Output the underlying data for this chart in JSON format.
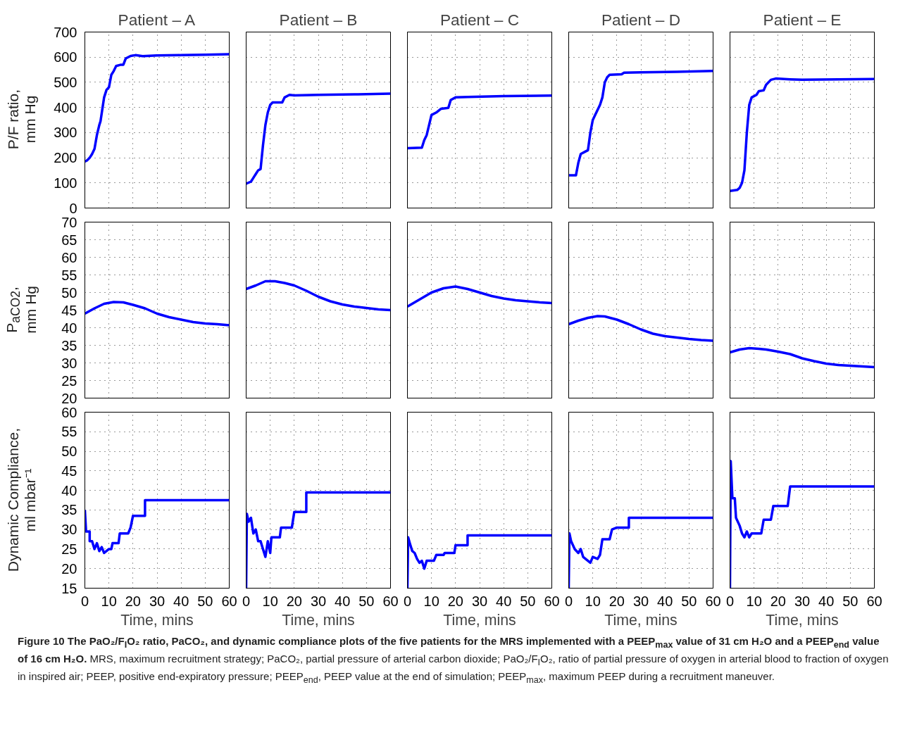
{
  "chart_data": [
    {
      "type": "line",
      "title": "Patient – A",
      "ylabel": "P/F ratio, mm Hg",
      "xlim": [
        0,
        60
      ],
      "xticks": [
        0,
        10,
        20,
        30,
        40,
        50,
        60
      ],
      "ylim": [
        0,
        700
      ],
      "yticks": [
        0,
        100,
        200,
        300,
        400,
        500,
        600,
        700
      ],
      "grid": true,
      "tick_labels": "y",
      "series": [
        {
          "color": "#0000ff",
          "x": [
            0,
            1,
            2,
            3,
            4,
            5,
            6,
            6.5,
            8,
            9,
            10,
            11,
            12,
            13,
            15,
            16,
            17,
            19,
            21,
            24,
            30,
            40,
            50,
            60
          ],
          "values": [
            185,
            190,
            200,
            215,
            235,
            290,
            330,
            345,
            440,
            470,
            480,
            530,
            545,
            565,
            570,
            570,
            595,
            605,
            608,
            604,
            607,
            608,
            610,
            612
          ]
        }
      ]
    },
    {
      "type": "line",
      "title": "Patient – B",
      "xlim": [
        0,
        60
      ],
      "xticks": [
        0,
        10,
        20,
        30,
        40,
        50,
        60
      ],
      "ylim": [
        0,
        700
      ],
      "yticks": [
        0,
        100,
        200,
        300,
        400,
        500,
        600,
        700
      ],
      "grid": true,
      "tick_labels": false,
      "series": [
        {
          "color": "#0000ff",
          "x": [
            0,
            2,
            3,
            4,
            5,
            6,
            7,
            8,
            9,
            10,
            11,
            15,
            16,
            18,
            20,
            30,
            45,
            60
          ],
          "values": [
            97,
            105,
            120,
            135,
            150,
            155,
            250,
            330,
            380,
            410,
            420,
            420,
            440,
            450,
            448,
            450,
            452,
            455
          ]
        }
      ]
    },
    {
      "type": "line",
      "title": "Patient – C",
      "xlim": [
        0,
        60
      ],
      "xticks": [
        0,
        10,
        20,
        30,
        40,
        50,
        60
      ],
      "ylim": [
        0,
        700
      ],
      "yticks": [
        0,
        100,
        200,
        300,
        400,
        500,
        600,
        700
      ],
      "grid": true,
      "tick_labels": false,
      "series": [
        {
          "color": "#0000ff",
          "x": [
            0,
            6,
            7,
            8,
            9,
            10,
            12,
            14,
            17,
            18,
            20,
            25,
            40,
            60
          ],
          "values": [
            238,
            240,
            270,
            290,
            330,
            370,
            380,
            395,
            398,
            430,
            440,
            442,
            445,
            447
          ]
        }
      ]
    },
    {
      "type": "line",
      "title": "Patient – D",
      "xlim": [
        0,
        60
      ],
      "xticks": [
        0,
        10,
        20,
        30,
        40,
        50,
        60
      ],
      "ylim": [
        0,
        700
      ],
      "yticks": [
        0,
        100,
        200,
        300,
        400,
        500,
        600,
        700
      ],
      "grid": true,
      "tick_labels": false,
      "series": [
        {
          "color": "#0000ff",
          "x": [
            0,
            3,
            4,
            5,
            7,
            8,
            9,
            10,
            11,
            13,
            14,
            15,
            16,
            17,
            22,
            23,
            30,
            45,
            60
          ],
          "values": [
            130,
            130,
            180,
            215,
            225,
            230,
            300,
            350,
            370,
            410,
            440,
            500,
            520,
            530,
            532,
            538,
            540,
            542,
            545
          ]
        }
      ]
    },
    {
      "type": "line",
      "title": "Patient – E",
      "xlim": [
        0,
        60
      ],
      "xticks": [
        0,
        10,
        20,
        30,
        40,
        50,
        60
      ],
      "ylim": [
        0,
        700
      ],
      "yticks": [
        0,
        100,
        200,
        300,
        400,
        500,
        600,
        700
      ],
      "grid": true,
      "tick_labels": false,
      "series": [
        {
          "color": "#0000ff",
          "x": [
            0,
            3,
            4,
            5,
            6,
            7,
            8,
            9,
            11,
            12,
            14,
            15,
            17,
            19,
            25,
            30,
            45,
            60
          ],
          "values": [
            68,
            72,
            80,
            100,
            150,
            300,
            410,
            440,
            450,
            465,
            468,
            490,
            510,
            515,
            512,
            510,
            512,
            513
          ]
        }
      ]
    },
    {
      "type": "line",
      "ylabel": "P$_{aCO2}$, mm Hg",
      "xlim": [
        0,
        60
      ],
      "xticks": [
        0,
        10,
        20,
        30,
        40,
        50,
        60
      ],
      "ylim": [
        20,
        70
      ],
      "yticks": [
        20,
        25,
        30,
        35,
        40,
        45,
        50,
        55,
        60,
        65,
        70
      ],
      "grid": true,
      "tick_labels": "y",
      "series": [
        {
          "color": "#0000ff",
          "x": [
            0,
            4,
            8,
            12,
            16,
            20,
            25,
            30,
            35,
            40,
            45,
            50,
            55,
            60
          ],
          "values": [
            44,
            45.5,
            46.8,
            47.3,
            47.2,
            46.5,
            45.5,
            44,
            43,
            42.3,
            41.6,
            41.2,
            41,
            40.7
          ]
        }
      ]
    },
    {
      "type": "line",
      "xlim": [
        0,
        60
      ],
      "xticks": [
        0,
        10,
        20,
        30,
        40,
        50,
        60
      ],
      "ylim": [
        20,
        70
      ],
      "yticks": [
        20,
        25,
        30,
        35,
        40,
        45,
        50,
        55,
        60,
        65,
        70
      ],
      "grid": true,
      "tick_labels": false,
      "series": [
        {
          "color": "#0000ff",
          "x": [
            0,
            4,
            8,
            12,
            16,
            20,
            25,
            30,
            35,
            40,
            45,
            50,
            55,
            60
          ],
          "values": [
            51,
            52,
            53.2,
            53.2,
            52.7,
            52,
            50.5,
            48.8,
            47.5,
            46.6,
            46,
            45.6,
            45.2,
            45
          ]
        }
      ]
    },
    {
      "type": "line",
      "xlim": [
        0,
        60
      ],
      "xticks": [
        0,
        10,
        20,
        30,
        40,
        50,
        60
      ],
      "ylim": [
        20,
        70
      ],
      "yticks": [
        20,
        25,
        30,
        35,
        40,
        45,
        50,
        55,
        60,
        65,
        70
      ],
      "grid": true,
      "tick_labels": false,
      "series": [
        {
          "color": "#0000ff",
          "x": [
            0,
            5,
            10,
            15,
            20,
            25,
            30,
            35,
            40,
            45,
            50,
            55,
            60
          ],
          "values": [
            46,
            48,
            50,
            51.2,
            51.7,
            51,
            50,
            49,
            48.3,
            47.8,
            47.5,
            47.2,
            47
          ]
        }
      ]
    },
    {
      "type": "line",
      "xlim": [
        0,
        60
      ],
      "xticks": [
        0,
        10,
        20,
        30,
        40,
        50,
        60
      ],
      "ylim": [
        20,
        70
      ],
      "yticks": [
        20,
        25,
        30,
        35,
        40,
        45,
        50,
        55,
        60,
        65,
        70
      ],
      "grid": true,
      "tick_labels": false,
      "series": [
        {
          "color": "#0000ff",
          "x": [
            0,
            4,
            8,
            12,
            15,
            20,
            25,
            30,
            35,
            40,
            45,
            50,
            55,
            60
          ],
          "values": [
            41,
            42,
            42.8,
            43.3,
            43.2,
            42.3,
            41,
            39.5,
            38.3,
            37.6,
            37.2,
            36.8,
            36.5,
            36.3
          ]
        }
      ]
    },
    {
      "type": "line",
      "xlim": [
        0,
        60
      ],
      "xticks": [
        0,
        10,
        20,
        30,
        40,
        50,
        60
      ],
      "ylim": [
        20,
        70
      ],
      "yticks": [
        20,
        25,
        30,
        35,
        40,
        45,
        50,
        55,
        60,
        65,
        70
      ],
      "grid": true,
      "tick_labels": false,
      "series": [
        {
          "color": "#0000ff",
          "x": [
            0,
            4,
            8,
            12,
            15,
            20,
            25,
            30,
            35,
            40,
            45,
            50,
            55,
            60
          ],
          "values": [
            33,
            33.8,
            34.2,
            34,
            33.8,
            33.2,
            32.5,
            31.3,
            30.5,
            29.8,
            29.4,
            29.2,
            29,
            28.8
          ]
        }
      ]
    },
    {
      "type": "line",
      "ylabel": "Dynamic Compliance, ml mbar⁻¹",
      "xlabel": "Time, mins",
      "xlim": [
        0,
        60
      ],
      "xticks": [
        0,
        10,
        20,
        30,
        40,
        50,
        60
      ],
      "ylim": [
        15,
        60
      ],
      "yticks": [
        15,
        20,
        25,
        30,
        35,
        40,
        45,
        50,
        55,
        60
      ],
      "grid": true,
      "series": [
        {
          "color": "#0000ff",
          "x": [
            0,
            0.5,
            2,
            2,
            3,
            4,
            5,
            6,
            7,
            8,
            9,
            10,
            11,
            11.5,
            14,
            14.5,
            18,
            19,
            20,
            25,
            25,
            60
          ],
          "values": [
            35,
            29.5,
            29.5,
            27,
            27,
            25,
            26.5,
            24.5,
            25.5,
            24,
            24.5,
            25,
            25,
            26.5,
            26.5,
            29,
            29,
            30.5,
            33.5,
            33.5,
            37.5,
            37.5
          ]
        }
      ]
    },
    {
      "type": "line",
      "xlabel": "Time, mins",
      "xlim": [
        0,
        60
      ],
      "xticks": [
        0,
        10,
        20,
        30,
        40,
        50,
        60
      ],
      "ylim": [
        15,
        60
      ],
      "yticks": [
        15,
        20,
        25,
        30,
        35,
        40,
        45,
        50,
        55,
        60
      ],
      "grid": true,
      "tick_labels": "x",
      "series": [
        {
          "color": "#0000ff",
          "x": [
            0,
            0.3,
            1,
            2,
            3,
            4,
            5,
            6,
            7,
            8,
            9,
            10,
            10.5,
            14,
            14.5,
            19,
            20,
            25,
            25,
            60
          ],
          "values": [
            15,
            34,
            32,
            33,
            29,
            30,
            27,
            27,
            25,
            23,
            27,
            24,
            28,
            28,
            30.5,
            30.5,
            34.5,
            34.5,
            39.5,
            39.5
          ]
        }
      ]
    },
    {
      "type": "line",
      "xlabel": "Time, mins",
      "xlim": [
        0,
        60
      ],
      "xticks": [
        0,
        10,
        20,
        30,
        40,
        50,
        60
      ],
      "ylim": [
        15,
        60
      ],
      "yticks": [
        15,
        20,
        25,
        30,
        35,
        40,
        45,
        50,
        55,
        60
      ],
      "grid": true,
      "tick_labels": "x",
      "series": [
        {
          "color": "#0000ff",
          "x": [
            0,
            0.3,
            1,
            2,
            3,
            4,
            5,
            6,
            7,
            8,
            11,
            12,
            15,
            15.5,
            19.5,
            20,
            25,
            25,
            60
          ],
          "values": [
            15,
            28,
            26.5,
            24.5,
            24,
            22.5,
            21.5,
            22,
            20,
            22,
            22,
            23.5,
            23.5,
            24,
            24,
            26,
            26,
            28.5,
            28.5
          ]
        }
      ]
    },
    {
      "type": "line",
      "xlabel": "Time, mins",
      "xlim": [
        0,
        60
      ],
      "xticks": [
        0,
        10,
        20,
        30,
        40,
        50,
        60
      ],
      "ylim": [
        15,
        60
      ],
      "yticks": [
        15,
        20,
        25,
        30,
        35,
        40,
        45,
        50,
        55,
        60
      ],
      "grid": true,
      "tick_labels": "x",
      "series": [
        {
          "color": "#0000ff",
          "x": [
            0,
            0.3,
            1,
            2.5,
            4,
            5,
            6,
            8,
            9,
            10,
            12,
            13,
            14,
            17,
            18,
            20,
            25,
            25,
            60
          ],
          "values": [
            15,
            29,
            27,
            25,
            24,
            25,
            23,
            22,
            21.5,
            23,
            22.5,
            23.5,
            27.5,
            27.5,
            30,
            30.5,
            30.5,
            33,
            33
          ]
        }
      ]
    },
    {
      "type": "line",
      "xlabel": "Time, mins",
      "xlim": [
        0,
        60
      ],
      "xticks": [
        0,
        10,
        20,
        30,
        40,
        50,
        60
      ],
      "ylim": [
        15,
        60
      ],
      "yticks": [
        15,
        20,
        25,
        30,
        35,
        40,
        45,
        50,
        55,
        60
      ],
      "grid": true,
      "tick_labels": "x",
      "series": [
        {
          "color": "#0000ff",
          "x": [
            0,
            0.3,
            1,
            2,
            2.5,
            4,
            5,
            6,
            7,
            8,
            9,
            13,
            14,
            17,
            18,
            24,
            25,
            60
          ],
          "values": [
            15,
            47.5,
            38,
            38,
            33,
            31,
            29,
            28,
            29.5,
            28,
            29,
            29,
            32.5,
            32.5,
            36,
            36,
            41,
            41
          ]
        }
      ]
    },
    {
      "type": "other",
      "annotations": [
        "Figure 10 The PaO₂/F$_{I}$O₂ ratio, PaCO₂, and dynamic compliance plots of the five patients for the MRS implemented with a PEEP$_{max}$ value of 31 cm H₂O and a PEEP$_{end}$ value of 16 cm H₂O.",
        "MRS, maximum recruitment strategy; PaCO₂, partial pressure of arterial carbon dioxide; PaO₂/F$_{I}$O₂, ratio of partial pressure of oxygen in arterial blood to fraction of oxygen in inspired air; PEEP, positive end-expiratory pressure; PEEP$_{end}$, PEEP value at the end of simulation; PEEP$_{max}$, maximum PEEP during a recruitment maneuver."
      ]
    }
  ]
}
